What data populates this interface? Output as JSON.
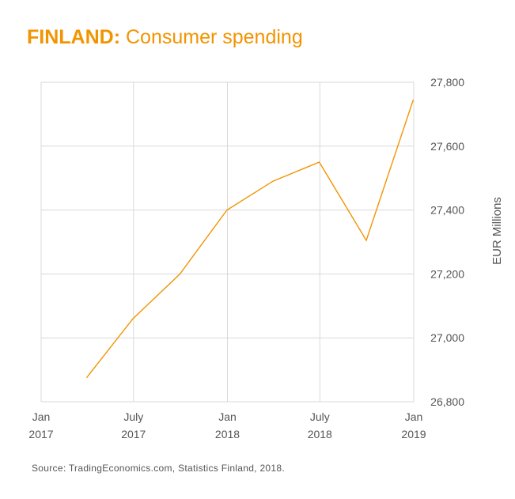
{
  "title": {
    "country": "FINLAND:",
    "topic": "Consumer spending"
  },
  "source": "Source: TradingEconomics.com, Statistics Finland, 2018.",
  "colors": {
    "accent": "#f29400",
    "grid": "#d9d9d9",
    "text": "#555555"
  },
  "chart_data": {
    "type": "line",
    "title": "FINLAND: Consumer spending",
    "ylabel": "EUR Millions",
    "xlabel": "",
    "ylim": [
      26800,
      27800
    ],
    "yticks": [
      26800,
      27000,
      27200,
      27400,
      27600,
      27800
    ],
    "ytick_labels": [
      "26,800",
      "27,000",
      "27,200",
      "27,400",
      "27,600",
      "27,800"
    ],
    "xlim": [
      "2017-01-01",
      "2019-01-01"
    ],
    "xticks": [
      {
        "date": "2017-01-01",
        "label_top": "Jan",
        "label_bottom": "2017"
      },
      {
        "date": "2017-07-01",
        "label_top": "July",
        "label_bottom": "2017"
      },
      {
        "date": "2018-01-01",
        "label_top": "Jan",
        "label_bottom": "2018"
      },
      {
        "date": "2018-07-01",
        "label_top": "July",
        "label_bottom": "2018"
      },
      {
        "date": "2019-01-01",
        "label_top": "Jan",
        "label_bottom": "2019"
      }
    ],
    "grid": true,
    "y_axis_side": "right",
    "series": [
      {
        "color": "#f29400",
        "points": [
          {
            "x": "2017-03-31",
            "y": 26875
          },
          {
            "x": "2017-06-30",
            "y": 27060
          },
          {
            "x": "2017-09-30",
            "y": 27200
          },
          {
            "x": "2017-12-31",
            "y": 27400
          },
          {
            "x": "2018-03-31",
            "y": 27490
          },
          {
            "x": "2018-06-30",
            "y": 27550
          },
          {
            "x": "2018-09-30",
            "y": 27305
          },
          {
            "x": "2018-12-31",
            "y": 27745
          }
        ]
      }
    ]
  }
}
